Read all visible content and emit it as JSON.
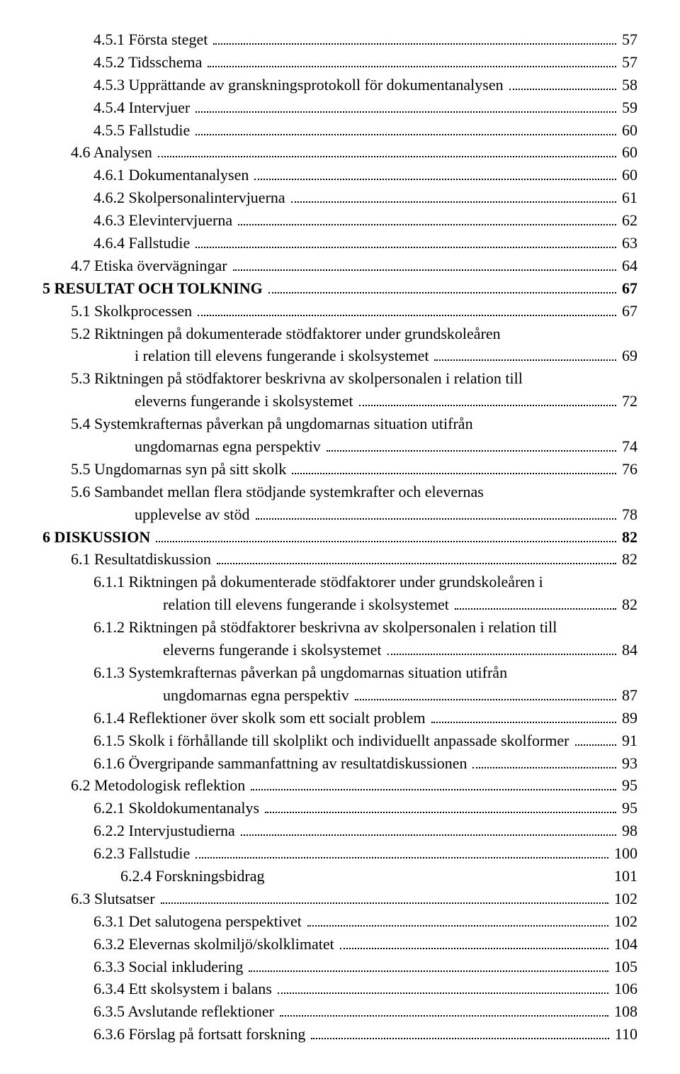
{
  "entries": [
    {
      "label": "4.5.1 Första steget",
      "page": "57",
      "indent": 2,
      "bold": false
    },
    {
      "label": "4.5.2 Tidsschema",
      "page": "57",
      "indent": 2,
      "bold": false
    },
    {
      "label": "4.5.3 Upprättande av granskningsprotokoll för dokumentanalysen",
      "page": "58",
      "indent": 2,
      "bold": false
    },
    {
      "label": "4.5.4 Intervjuer",
      "page": "59",
      "indent": 2,
      "bold": false
    },
    {
      "label": "4.5.5 Fallstudie",
      "page": "60",
      "indent": 2,
      "bold": false
    },
    {
      "label": "4.6 Analysen",
      "page": "60",
      "indent": 1,
      "bold": false
    },
    {
      "label": "4.6.1 Dokumentanalysen",
      "page": "60",
      "indent": 2,
      "bold": false
    },
    {
      "label": "4.6.2 Skolpersonalintervjuerna",
      "page": "61",
      "indent": 2,
      "bold": false
    },
    {
      "label": "4.6.3 Elevintervjuerna",
      "page": "62",
      "indent": 2,
      "bold": false
    },
    {
      "label": "4.6.4 Fallstudie",
      "page": "63",
      "indent": 2,
      "bold": false
    },
    {
      "label": "4.7 Etiska övervägningar",
      "page": "64",
      "indent": 1,
      "bold": false
    },
    {
      "label": "5 RESULTAT OCH TOLKNING",
      "page": "67",
      "indent": 0,
      "bold": true
    },
    {
      "label": "5.1 Skolkprocessen",
      "page": "67",
      "indent": 1,
      "bold": false
    },
    {
      "label": "5.2 Riktningen på dokumenterade stödfaktorer under grundskoleåren",
      "cont": "i relation till elevens fungerande i skolsystemet",
      "page": "69",
      "indent": 1,
      "bold": false
    },
    {
      "label": "5.3 Riktningen på stödfaktorer beskrivna av skolpersonalen i relation till",
      "cont": "eleverns fungerande i skolsystemet",
      "page": "72",
      "indent": 1,
      "bold": false
    },
    {
      "label": "5.4 Systemkrafternas påverkan på ungdomarnas situation utifrån",
      "cont": "ungdomarnas egna perspektiv",
      "page": "74",
      "indent": 1,
      "bold": false
    },
    {
      "label": "5.5 Ungdomarnas syn på sitt skolk",
      "page": "76",
      "indent": 1,
      "bold": false
    },
    {
      "label": "5.6 Sambandet mellan flera stödjande systemkrafter och elevernas",
      "cont": "upplevelse av stöd",
      "page": "78",
      "indent": 1,
      "bold": false
    },
    {
      "label": "6 DISKUSSION",
      "page": "82",
      "indent": 0,
      "bold": true
    },
    {
      "label": "6.1 Resultatdiskussion",
      "page": "82",
      "indent": 1,
      "bold": false
    },
    {
      "label": "6.1.1 Riktningen på dokumenterade stödfaktorer under grundskoleåren i",
      "cont": "relation till elevens fungerande i skolsystemet",
      "contIndent": "cont-indent-2",
      "page": "82",
      "indent": 2,
      "bold": false
    },
    {
      "label": "6.1.2 Riktningen på stödfaktorer beskrivna av skolpersonalen i relation till",
      "cont": "eleverns fungerande i skolsystemet",
      "contIndent": "cont-indent-2",
      "page": "84",
      "indent": 2,
      "bold": false
    },
    {
      "label": "6.1.3 Systemkrafternas påverkan på ungdomarnas situation utifrån",
      "cont": "ungdomarnas egna perspektiv",
      "contIndent": "cont-indent-2",
      "page": "87",
      "indent": 2,
      "bold": false
    },
    {
      "label": "6.1.4 Reflektioner över skolk som ett socialt problem",
      "page": "89",
      "indent": 2,
      "bold": false
    },
    {
      "label": "6.1.5 Skolk i förhållande till skolplikt och individuellt anpassade skolformer",
      "page": "91",
      "indent": 2,
      "bold": false
    },
    {
      "label": "6.1.6 Övergripande sammanfattning av resultatdiskussionen",
      "page": "93",
      "indent": 2,
      "bold": false
    },
    {
      "label": "6.2 Metodologisk reflektion",
      "page": "95",
      "indent": 1,
      "bold": false
    },
    {
      "label": "6.2.1 Skoldokumentanalys",
      "page": "95",
      "indent": 2,
      "bold": false
    },
    {
      "label": "6.2.2 Intervjustudierna",
      "page": "98",
      "indent": 2,
      "bold": false
    },
    {
      "label": "6.2.3 Fallstudie",
      "page": "100",
      "indent": 2,
      "bold": false
    },
    {
      "label": "6.2.4 Forskningsbidrag",
      "page": "101",
      "indent": 3,
      "bold": false,
      "noleader": true
    },
    {
      "label": "6.3 Slutsatser",
      "page": "102",
      "indent": 1,
      "bold": false
    },
    {
      "label": "6.3.1 Det salutogena perspektivet",
      "page": "102",
      "indent": 2,
      "bold": false
    },
    {
      "label": "6.3.2 Elevernas skolmiljö/skolklimatet",
      "page": "104",
      "indent": 2,
      "bold": false
    },
    {
      "label": "6.3.3 Social inkludering",
      "page": "105",
      "indent": 2,
      "bold": false
    },
    {
      "label": "6.3.4 Ett skolsystem i balans",
      "page": "106",
      "indent": 2,
      "bold": false
    },
    {
      "label": "6.3.5 Avslutande reflektioner",
      "page": "108",
      "indent": 2,
      "bold": false
    },
    {
      "label": "6.3.6 Förslag på fortsatt forskning",
      "page": "110",
      "indent": 2,
      "bold": false
    }
  ]
}
